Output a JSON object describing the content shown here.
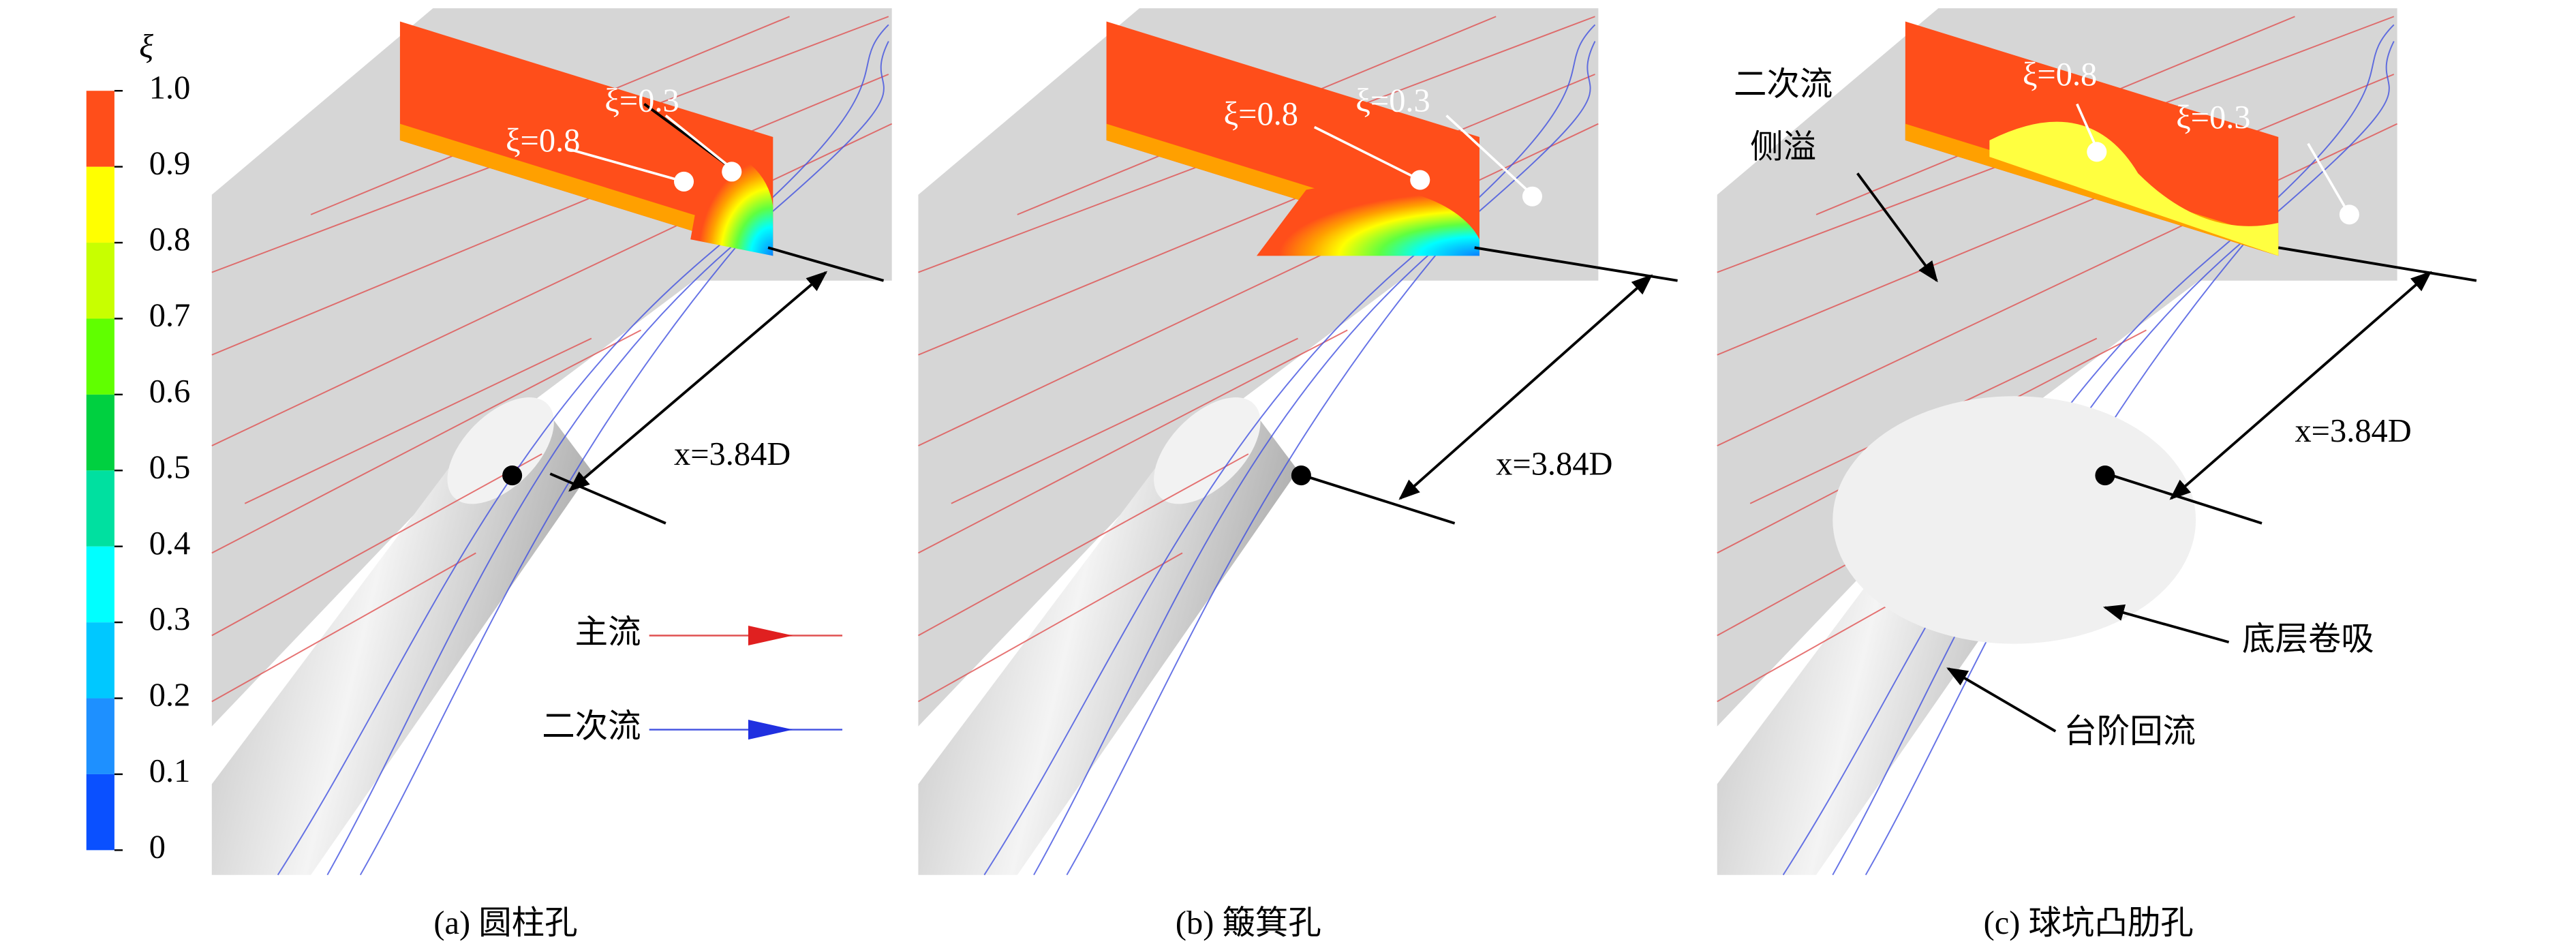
{
  "colorbar": {
    "title": "ξ",
    "ticks": [
      {
        "value": 1,
        "label": "1.0"
      },
      {
        "value": 0.9,
        "label": "0.9"
      },
      {
        "value": 0.8,
        "label": "0.8"
      },
      {
        "value": 0.7,
        "label": "0.7"
      },
      {
        "value": 0.6,
        "label": "0.6"
      },
      {
        "value": 0.5,
        "label": "0.5"
      },
      {
        "value": 0.4,
        "label": "0.4"
      },
      {
        "value": 0.3,
        "label": "0.3"
      },
      {
        "value": 0.2,
        "label": "0.2"
      },
      {
        "value": 0.1,
        "label": "0.1"
      },
      0
    ],
    "colors": [
      "#0a50ff",
      "#1e90ff",
      "#00c8ff",
      "#00ffff",
      "#00e0a0",
      "#00d040",
      "#60ff00",
      "#c8ff00",
      "#ffff00",
      "#ffa000",
      "#ff4e1a"
    ]
  },
  "legend": {
    "main": "主流",
    "secondary": "二次流"
  },
  "panels": [
    {
      "caption": "(a) 圆柱孔",
      "contour_a": "ξ=0.3",
      "contour_b": "ξ=0.8",
      "distance": "x=3.84D"
    },
    {
      "caption": "(b) 簸箕孔",
      "contour_a": "ξ=0.8",
      "contour_b": "ξ=0.3",
      "distance": "x=3.84D"
    },
    {
      "caption": "(c) 球坑凸肋孔",
      "contour_a": "ξ=0.8",
      "contour_b": "ξ=0.3",
      "distance": "x=3.84D",
      "notes": {
        "spill": [
          "二次流",
          "侧溢"
        ],
        "entrain": "底层卷吸",
        "step": "台阶回流"
      }
    }
  ]
}
